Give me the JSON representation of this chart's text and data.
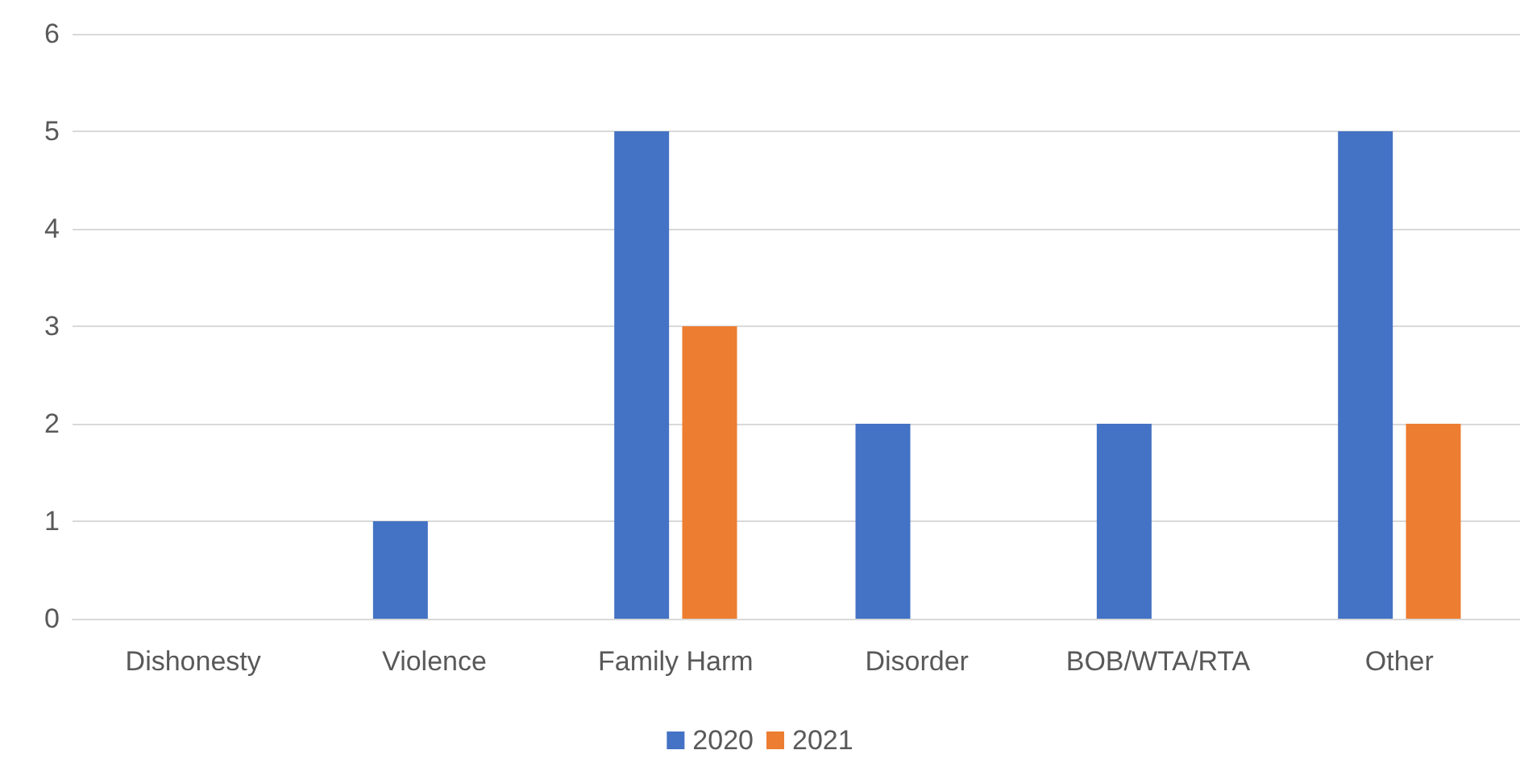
{
  "chart_data": {
    "type": "bar",
    "categories": [
      "Dishonesty",
      "Violence",
      "Family Harm",
      "Disorder",
      "BOB/WTA/RTA",
      "Other"
    ],
    "series": [
      {
        "name": "2020",
        "color": "#4472c4",
        "values": [
          0,
          1,
          5,
          2,
          2,
          5
        ]
      },
      {
        "name": "2021",
        "color": "#ed7d31",
        "values": [
          0,
          0,
          3,
          0,
          0,
          2
        ]
      }
    ],
    "ylim": [
      0,
      6
    ],
    "yticks": [
      0,
      1,
      2,
      3,
      4,
      5,
      6
    ],
    "grid": "y",
    "legend": "bottom"
  }
}
